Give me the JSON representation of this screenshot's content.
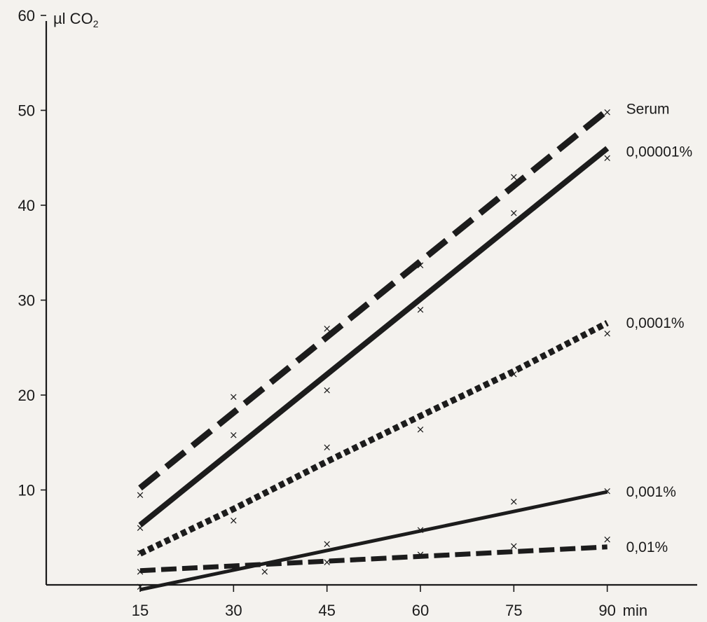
{
  "chart_data": {
    "type": "line",
    "ylabel": "µl CO",
    "ylabel_subscript": "2",
    "xunit": "min",
    "xlim": [
      15,
      90
    ],
    "ylim": [
      0,
      60
    ],
    "xticks": [
      15,
      30,
      45,
      60,
      75,
      90
    ],
    "yticks": [
      10,
      20,
      30,
      40,
      50,
      60
    ],
    "grid": false,
    "legend": "none",
    "series": [
      {
        "name": "Serum",
        "style": "long-dash",
        "line": [
          [
            15,
            10.2
          ],
          [
            90,
            50
          ]
        ],
        "points": [
          [
            15,
            9.5
          ],
          [
            30,
            19.8
          ],
          [
            45,
            27
          ],
          [
            60,
            33.7
          ],
          [
            75,
            43
          ],
          [
            90,
            49.8
          ]
        ]
      },
      {
        "name": "0,00001%",
        "style": "solid-thick",
        "line": [
          [
            15,
            6.3
          ],
          [
            90,
            46
          ]
        ],
        "points": [
          [
            15,
            6
          ],
          [
            30,
            15.8
          ],
          [
            45,
            20.5
          ],
          [
            60,
            29
          ],
          [
            75,
            39.2
          ],
          [
            90,
            45
          ]
        ]
      },
      {
        "name": "0,0001%",
        "style": "dotted-thick",
        "line": [
          [
            15,
            3.3
          ],
          [
            30,
            8
          ],
          [
            45,
            13
          ],
          [
            60,
            17.8
          ],
          [
            75,
            22.5
          ],
          [
            90,
            27.6
          ]
        ],
        "points": [
          [
            15,
            3.4
          ],
          [
            30,
            6.8
          ],
          [
            45,
            14.5
          ],
          [
            60,
            16.4
          ],
          [
            75,
            22.2
          ],
          [
            90,
            26.5
          ]
        ]
      },
      {
        "name": "0,001%",
        "style": "solid-thin",
        "line": [
          [
            15,
            -0.5
          ],
          [
            90,
            9.8
          ]
        ],
        "points": [
          [
            15,
            -0.2
          ],
          [
            30,
            1.8
          ],
          [
            45,
            4.3
          ],
          [
            60,
            5.8
          ],
          [
            75,
            8.8
          ],
          [
            90,
            9.9
          ]
        ]
      },
      {
        "name": "0,01%",
        "style": "short-dash",
        "line": [
          [
            15,
            1.5
          ],
          [
            90,
            4
          ]
        ],
        "points": [
          [
            15,
            1.4
          ],
          [
            30,
            1.8
          ],
          [
            35,
            1.4
          ],
          [
            45,
            2.4
          ],
          [
            60,
            3.2
          ],
          [
            75,
            4.1
          ],
          [
            90,
            4.8
          ]
        ]
      }
    ]
  }
}
